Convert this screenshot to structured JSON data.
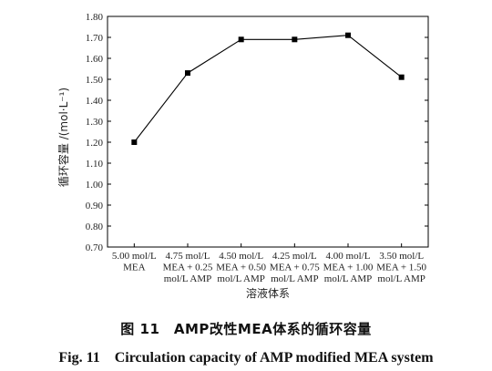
{
  "caption": {
    "cn": "图 11　AMP改性MEA体系的循环容量",
    "en": "Fig. 11　Circulation capacity of AMP modified MEA system"
  },
  "chart_data": {
    "type": "line",
    "xlabel": "溶液体系",
    "ylabel": "循环容量 /(mol·L⁻¹)",
    "ylim": [
      0.7,
      1.8
    ],
    "yticks": [
      "0.70",
      "0.80",
      "0.90",
      "1.00",
      "1.10",
      "1.20",
      "1.30",
      "1.40",
      "1.50",
      "1.60",
      "1.70",
      "1.80"
    ],
    "categories": [
      [
        "5.00 mol/L",
        "MEA"
      ],
      [
        "4.75 mol/L",
        "MEA + 0.25",
        "mol/L AMP"
      ],
      [
        "4.50 mol/L",
        "MEA + 0.50",
        "mol/L AMP"
      ],
      [
        "4.25 mol/L",
        "MEA + 0.75",
        "mol/L AMP"
      ],
      [
        "4.00 mol/L",
        "MEA + 1.00",
        "mol/L AMP"
      ],
      [
        "3.50 mol/L",
        "MEA + 1.50",
        "mol/L AMP"
      ]
    ],
    "values": [
      1.2,
      1.53,
      1.69,
      1.69,
      1.71,
      1.51
    ],
    "marker": "square",
    "line_color": "#000000",
    "grid": false
  }
}
